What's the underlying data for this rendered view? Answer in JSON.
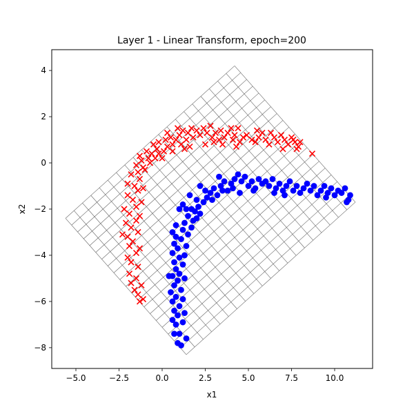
{
  "chart_data": {
    "type": "scatter",
    "title": "Layer 1 - Linear Transform, epoch=200",
    "xlabel": "x1",
    "ylabel": "x2",
    "xlim": [
      -6.4,
      12.2
    ],
    "ylim": [
      -8.9,
      4.9
    ],
    "xticks": [
      -5.0,
      -2.5,
      0.0,
      2.5,
      5.0,
      7.5,
      10.0
    ],
    "xtick_labels": [
      "−5.0",
      "−2.5",
      "0.0",
      "2.5",
      "5.0",
      "7.5",
      "10.0"
    ],
    "yticks": [
      -8,
      -6,
      -4,
      -2,
      0,
      2,
      4
    ],
    "ytick_labels": [
      "−8",
      "−6",
      "−4",
      "−2",
      "0",
      "2",
      "4"
    ],
    "grid": "transformed mesh",
    "mesh": {
      "corners": {
        "top": [
          4.2,
          4.2
        ],
        "left": [
          -5.6,
          -2.4
        ],
        "bottom": [
          1.4,
          -8.3
        ],
        "right": [
          11.2,
          -1.7
        ]
      },
      "divisions": 20,
      "color": "#666666"
    },
    "series": [
      {
        "marker": "x",
        "color": "#ff0000",
        "points": [
          [
            -1.3,
            -6.0
          ],
          [
            -1.1,
            -5.9
          ],
          [
            -1.4,
            -5.7
          ],
          [
            -1.6,
            -5.5
          ],
          [
            -1.2,
            -5.3
          ],
          [
            -1.8,
            -5.2
          ],
          [
            -1.5,
            -5.0
          ],
          [
            -1.9,
            -4.8
          ],
          [
            -1.4,
            -4.5
          ],
          [
            -1.8,
            -4.3
          ],
          [
            -2.0,
            -4.1
          ],
          [
            -1.5,
            -3.9
          ],
          [
            -1.9,
            -3.6
          ],
          [
            -1.3,
            -3.7
          ],
          [
            -1.7,
            -3.4
          ],
          [
            -2.0,
            -3.2
          ],
          [
            -2.3,
            -3.1
          ],
          [
            -1.4,
            -3.0
          ],
          [
            -1.8,
            -2.8
          ],
          [
            -2.1,
            -2.6
          ],
          [
            -1.5,
            -2.5
          ],
          [
            -1.3,
            -2.3
          ],
          [
            -1.9,
            -2.2
          ],
          [
            -2.2,
            -2.0
          ],
          [
            -1.5,
            -1.9
          ],
          [
            -1.2,
            -1.7
          ],
          [
            -1.7,
            -1.6
          ],
          [
            -2.0,
            -1.4
          ],
          [
            -1.4,
            -1.2
          ],
          [
            -1.1,
            -1.1
          ],
          [
            -1.6,
            -1.0
          ],
          [
            -2.0,
            -0.9
          ],
          [
            -1.3,
            -0.7
          ],
          [
            -1.8,
            -0.5
          ],
          [
            -1.4,
            -0.4
          ],
          [
            -1.0,
            -0.3
          ],
          [
            -1.5,
            -0.1
          ],
          [
            -1.2,
            0.1
          ],
          [
            -0.8,
            0.2
          ],
          [
            -1.3,
            0.3
          ],
          [
            -0.9,
            0.5
          ],
          [
            -0.6,
            0.4
          ],
          [
            -0.4,
            0.2
          ],
          [
            -0.7,
            0.0
          ],
          [
            -1.1,
            -0.2
          ],
          [
            -0.3,
            0.6
          ],
          [
            -0.5,
            0.8
          ],
          [
            -0.2,
            0.4
          ],
          [
            0.0,
            0.2
          ],
          [
            0.1,
            0.5
          ],
          [
            -0.2,
            0.9
          ],
          [
            0.3,
            0.7
          ],
          [
            0.2,
            1.0
          ],
          [
            0.6,
            0.8
          ],
          [
            0.5,
            1.1
          ],
          [
            0.8,
            1.0
          ],
          [
            0.3,
            1.3
          ],
          [
            1.0,
            1.2
          ],
          [
            1.2,
            1.4
          ],
          [
            0.9,
            1.5
          ],
          [
            1.5,
            1.3
          ],
          [
            1.7,
            1.5
          ],
          [
            1.4,
            1.0
          ],
          [
            1.1,
            0.8
          ],
          [
            2.0,
            1.4
          ],
          [
            2.2,
            1.2
          ],
          [
            1.8,
            1.1
          ],
          [
            2.4,
            1.5
          ],
          [
            2.6,
            1.3
          ],
          [
            1.6,
            0.7
          ],
          [
            1.3,
            0.6
          ],
          [
            2.9,
            1.1
          ],
          [
            3.1,
            1.3
          ],
          [
            3.3,
            1.0
          ],
          [
            2.8,
            1.6
          ],
          [
            3.4,
            1.4
          ],
          [
            3.0,
            0.9
          ],
          [
            3.6,
            1.1
          ],
          [
            3.8,
            1.3
          ],
          [
            4.0,
            1.5
          ],
          [
            4.2,
            1.2
          ],
          [
            4.4,
            1.5
          ],
          [
            4.1,
            1.0
          ],
          [
            4.5,
            0.9
          ],
          [
            4.7,
            1.1
          ],
          [
            4.3,
            0.7
          ],
          [
            4.9,
            1.2
          ],
          [
            5.2,
            1.0
          ],
          [
            5.4,
            0.9
          ],
          [
            5.6,
            1.1
          ],
          [
            5.8,
            1.3
          ],
          [
            5.5,
            1.4
          ],
          [
            6.0,
            1.0
          ],
          [
            6.2,
            0.8
          ],
          [
            6.5,
            1.1
          ],
          [
            6.7,
            0.9
          ],
          [
            6.9,
            1.2
          ],
          [
            7.1,
            1.0
          ],
          [
            7.3,
            0.8
          ],
          [
            7.5,
            1.1
          ],
          [
            7.7,
            0.9
          ],
          [
            7.9,
            0.7
          ],
          [
            7.6,
            1.0
          ],
          [
            8.0,
            0.9
          ],
          [
            7.8,
            0.6
          ],
          [
            8.7,
            0.4
          ],
          [
            2.5,
            0.8
          ],
          [
            3.5,
            0.8
          ],
          [
            6.3,
            1.3
          ],
          [
            7.0,
            0.6
          ],
          [
            0.6,
            0.5
          ]
        ]
      },
      {
        "marker": "o",
        "color": "#0000ff",
        "points": [
          [
            1.1,
            -7.9
          ],
          [
            0.9,
            -7.8
          ],
          [
            1.4,
            -7.6
          ],
          [
            0.7,
            -7.4
          ],
          [
            1.0,
            -7.4
          ],
          [
            0.8,
            -7.0
          ],
          [
            1.2,
            -6.9
          ],
          [
            0.6,
            -6.8
          ],
          [
            0.9,
            -6.6
          ],
          [
            1.3,
            -6.5
          ],
          [
            0.7,
            -6.4
          ],
          [
            1.0,
            -6.2
          ],
          [
            0.6,
            -6.0
          ],
          [
            1.2,
            -5.9
          ],
          [
            0.8,
            -5.8
          ],
          [
            0.5,
            -5.6
          ],
          [
            1.1,
            -5.5
          ],
          [
            0.7,
            -5.3
          ],
          [
            0.9,
            -5.1
          ],
          [
            1.3,
            -5.0
          ],
          [
            0.6,
            -4.9
          ],
          [
            1.0,
            -4.8
          ],
          [
            0.4,
            -4.9
          ],
          [
            0.8,
            -4.6
          ],
          [
            1.2,
            -4.4
          ],
          [
            0.7,
            -4.3
          ],
          [
            1.0,
            -4.1
          ],
          [
            1.3,
            -4.0
          ],
          [
            0.6,
            -3.9
          ],
          [
            0.9,
            -3.7
          ],
          [
            1.4,
            -3.6
          ],
          [
            0.7,
            -3.5
          ],
          [
            1.1,
            -3.3
          ],
          [
            0.8,
            -3.2
          ],
          [
            1.5,
            -3.1
          ],
          [
            0.6,
            -3.0
          ],
          [
            1.2,
            -2.9
          ],
          [
            1.7,
            -2.8
          ],
          [
            0.8,
            -2.7
          ],
          [
            1.3,
            -2.6
          ],
          [
            1.8,
            -2.5
          ],
          [
            1.5,
            -2.3
          ],
          [
            2.0,
            -2.4
          ],
          [
            2.2,
            -2.2
          ],
          [
            1.7,
            -2.0
          ],
          [
            2.1,
            -1.9
          ],
          [
            1.0,
            -2.0
          ],
          [
            1.2,
            -1.8
          ],
          [
            2.4,
            -1.7
          ],
          [
            2.6,
            -1.5
          ],
          [
            2.0,
            -1.6
          ],
          [
            1.6,
            -1.4
          ],
          [
            2.8,
            -1.3
          ],
          [
            3.0,
            -1.1
          ],
          [
            2.5,
            -1.2
          ],
          [
            2.2,
            -1.0
          ],
          [
            3.2,
            -1.4
          ],
          [
            3.4,
            -1.0
          ],
          [
            3.6,
            -0.8
          ],
          [
            3.3,
            -0.6
          ],
          [
            3.8,
            -1.2
          ],
          [
            4.0,
            -0.9
          ],
          [
            4.2,
            -0.7
          ],
          [
            4.4,
            -0.5
          ],
          [
            4.1,
            -1.1
          ],
          [
            4.6,
            -0.8
          ],
          [
            4.8,
            -0.6
          ],
          [
            5.0,
            -1.0
          ],
          [
            5.2,
            -0.8
          ],
          [
            5.4,
            -1.1
          ],
          [
            5.6,
            -0.7
          ],
          [
            5.8,
            -0.9
          ],
          [
            6.0,
            -0.8
          ],
          [
            6.2,
            -1.0
          ],
          [
            6.4,
            -0.7
          ],
          [
            6.6,
            -1.1
          ],
          [
            6.8,
            -0.9
          ],
          [
            7.0,
            -1.2
          ],
          [
            7.2,
            -1.0
          ],
          [
            7.4,
            -0.8
          ],
          [
            7.6,
            -1.2
          ],
          [
            7.8,
            -1.0
          ],
          [
            8.0,
            -1.3
          ],
          [
            8.2,
            -1.1
          ],
          [
            8.4,
            -0.9
          ],
          [
            8.6,
            -1.2
          ],
          [
            8.8,
            -1.0
          ],
          [
            9.0,
            -1.4
          ],
          [
            9.2,
            -1.2
          ],
          [
            9.4,
            -1.0
          ],
          [
            9.6,
            -1.3
          ],
          [
            9.8,
            -1.1
          ],
          [
            10.0,
            -1.4
          ],
          [
            10.2,
            -1.2
          ],
          [
            10.4,
            -1.3
          ],
          [
            10.6,
            -1.1
          ],
          [
            10.8,
            -1.6
          ],
          [
            10.9,
            -1.4
          ],
          [
            10.7,
            -1.7
          ],
          [
            9.5,
            -1.5
          ],
          [
            7.1,
            -1.4
          ],
          [
            6.5,
            -1.3
          ],
          [
            5.3,
            -1.2
          ],
          [
            4.5,
            -1.3
          ],
          [
            3.5,
            -1.2
          ],
          [
            2.9,
            -1.6
          ],
          [
            1.9,
            -2.1
          ],
          [
            1.4,
            -2.0
          ]
        ]
      }
    ]
  }
}
